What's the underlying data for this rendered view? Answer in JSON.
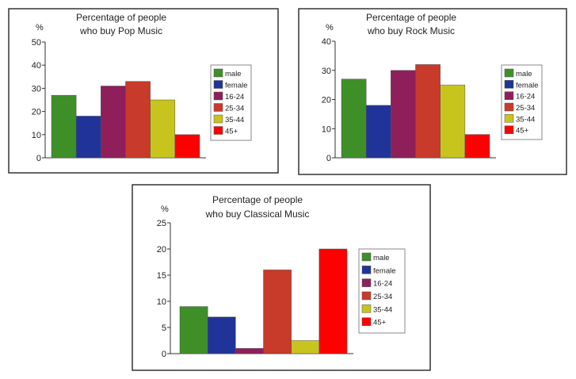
{
  "colors": [
    "#3f8f29",
    "#1f3399",
    "#8e1f5a",
    "#c83a2a",
    "#c8c41e",
    "#fe0000"
  ],
  "chart_data": [
    {
      "type": "bar",
      "title": [
        "Percentage of people",
        "who buy Pop Music"
      ],
      "ylabel": "%",
      "categories": [
        "male",
        "female",
        "16-24",
        "25-34",
        "35-44",
        "45+"
      ],
      "values": [
        27,
        18,
        31,
        33,
        25,
        10
      ],
      "ylim": [
        0,
        50
      ],
      "yticks": [
        0,
        10,
        20,
        30,
        40,
        50
      ],
      "legend": "right"
    },
    {
      "type": "bar",
      "title": [
        "Percentage of people",
        "who buy Rock Music"
      ],
      "ylabel": "%",
      "categories": [
        "male",
        "female",
        "16-24",
        "25-34",
        "35-44",
        "45+"
      ],
      "values": [
        27,
        18,
        30,
        32,
        25,
        8
      ],
      "ylim": [
        0,
        40
      ],
      "yticks": [
        0,
        10,
        20,
        30,
        40
      ],
      "legend": "right"
    },
    {
      "type": "bar",
      "title": [
        "Percentage of people",
        "who buy Classical Music"
      ],
      "ylabel": "%",
      "categories": [
        "male",
        "female",
        "16-24",
        "25-34",
        "35-44",
        "45+"
      ],
      "values": [
        9,
        7,
        1,
        16,
        2.5,
        20
      ],
      "ylim": [
        0,
        25
      ],
      "yticks": [
        0,
        5,
        10,
        15,
        20,
        25
      ],
      "legend": "right"
    }
  ]
}
